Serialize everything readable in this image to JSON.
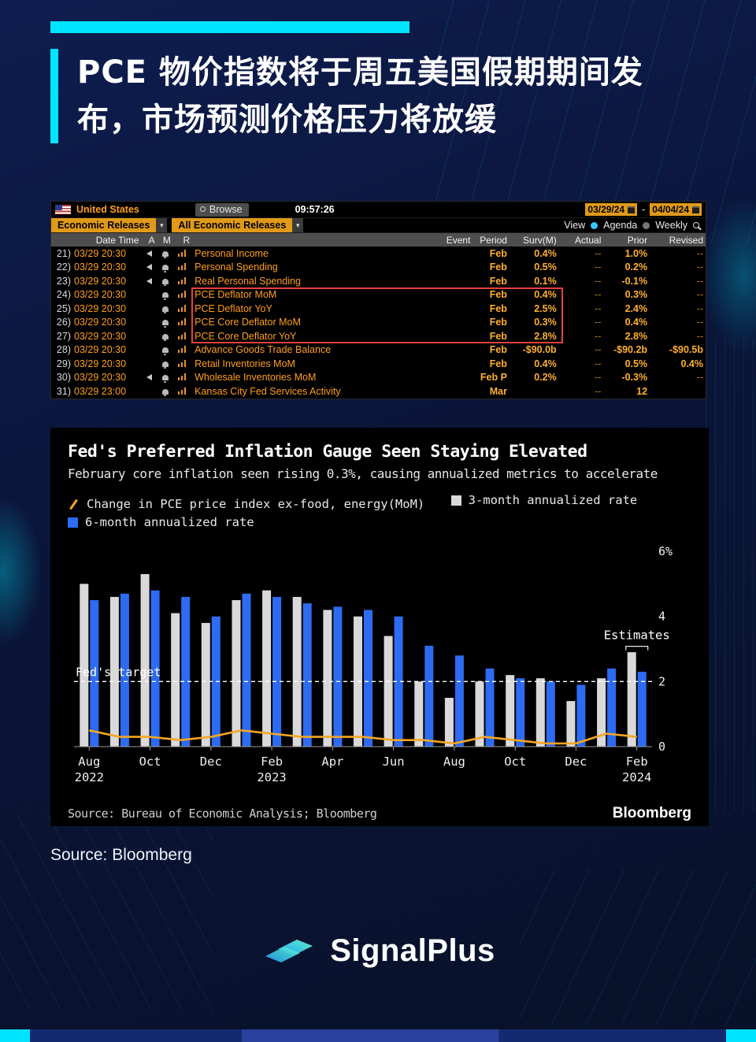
{
  "header": {
    "title_line1": "PCE 物价指数将于周五美国假期期间发",
    "title_line2": "布，市场预测价格压力将放缓"
  },
  "colors": {
    "accent_cyan": "#00e5ff",
    "terminal_amber": "#e09a17",
    "terminal_text_orange": "#ff9f1a",
    "highlight_red": "#e8413c",
    "bar_gray": "#d9d9d9",
    "bar_blue": "#2d6bf2",
    "line_orange": "#f5a623"
  },
  "terminal": {
    "country": "United States",
    "browse_label": "Browse",
    "time": "09:57:26",
    "date_from": "03/29/24",
    "date_separator": "-",
    "date_to": "04/04/24",
    "filter_primary": "Economic Releases",
    "filter_secondary": "All Economic Releases",
    "view_label": "View",
    "agenda_label": "Agenda",
    "weekly_label": "Weekly",
    "columns": [
      "Date Time",
      "A",
      "M",
      "R",
      "Event",
      "Period",
      "Surv(M)",
      "Actual",
      "Prior",
      "Revised"
    ],
    "rows": [
      {
        "num": "21)",
        "datetime": "03/29 20:30",
        "alert": true,
        "alarm": true,
        "chart": true,
        "event": "Personal Income",
        "period": "Feb",
        "surv": "0.4%",
        "actual": "--",
        "prior": "1.0%",
        "revised": "--",
        "highlight": false
      },
      {
        "num": "22)",
        "datetime": "03/29 20:30",
        "alert": true,
        "alarm": true,
        "chart": true,
        "event": "Personal Spending",
        "period": "Feb",
        "surv": "0.5%",
        "actual": "--",
        "prior": "0.2%",
        "revised": "--",
        "highlight": false
      },
      {
        "num": "23)",
        "datetime": "03/29 20:30",
        "alert": true,
        "alarm": true,
        "chart": true,
        "event": "Real Personal Spending",
        "period": "Feb",
        "surv": "0.1%",
        "actual": "--",
        "prior": "-0.1%",
        "revised": "--",
        "highlight": false
      },
      {
        "num": "24)",
        "datetime": "03/29 20:30",
        "alert": false,
        "alarm": true,
        "chart": true,
        "event": "PCE Deflator MoM",
        "period": "Feb",
        "surv": "0.4%",
        "actual": "--",
        "prior": "0.3%",
        "revised": "--",
        "highlight": true
      },
      {
        "num": "25)",
        "datetime": "03/29 20:30",
        "alert": false,
        "alarm": true,
        "chart": true,
        "event": "PCE Deflator YoY",
        "period": "Feb",
        "surv": "2.5%",
        "actual": "--",
        "prior": "2.4%",
        "revised": "--",
        "highlight": true
      },
      {
        "num": "26)",
        "datetime": "03/29 20:30",
        "alert": false,
        "alarm": true,
        "chart": true,
        "event": "PCE Core Deflator MoM",
        "period": "Feb",
        "surv": "0.3%",
        "actual": "--",
        "prior": "0.4%",
        "revised": "--",
        "highlight": true
      },
      {
        "num": "27)",
        "datetime": "03/29 20:30",
        "alert": false,
        "alarm": true,
        "chart": true,
        "event": "PCE Core Deflator YoY",
        "period": "Feb",
        "surv": "2.8%",
        "actual": "--",
        "prior": "2.8%",
        "revised": "--",
        "highlight": true
      },
      {
        "num": "28)",
        "datetime": "03/29 20:30",
        "alert": false,
        "alarm": true,
        "chart": true,
        "event": "Advance Goods Trade Balance",
        "period": "Feb",
        "surv": "-$90.0b",
        "actual": "--",
        "prior": "-$90.2b",
        "revised": "-$90.5b",
        "highlight": false
      },
      {
        "num": "29)",
        "datetime": "03/29 20:30",
        "alert": false,
        "alarm": true,
        "chart": true,
        "event": "Retail Inventories MoM",
        "period": "Feb",
        "surv": "0.4%",
        "actual": "--",
        "prior": "0.5%",
        "revised": "0.4%",
        "highlight": false
      },
      {
        "num": "30)",
        "datetime": "03/29 20:30",
        "alert": true,
        "alarm": true,
        "chart": true,
        "event": "Wholesale Inventories MoM",
        "period": "Feb P",
        "surv": "0.2%",
        "actual": "--",
        "prior": "-0.3%",
        "revised": "--",
        "highlight": false
      },
      {
        "num": "31)",
        "datetime": "03/29 23:00",
        "alert": false,
        "alarm": true,
        "chart": true,
        "event": "Kansas City Fed Services Activity",
        "period": "Mar",
        "surv": "",
        "actual": "--",
        "prior": "12",
        "revised": "",
        "highlight": false
      }
    ]
  },
  "chart_data": {
    "type": "bar",
    "title": "Fed's Preferred Inflation Gauge Seen Staying Elevated",
    "subtitle": "February core inflation seen rising 0.3%, causing annualized metrics to accelerate",
    "months": [
      "Aug 2022",
      "Sep 2022",
      "Oct 2022",
      "Nov 2022",
      "Dec 2022",
      "Jan 2023",
      "Feb 2023",
      "Mar 2023",
      "Apr 2023",
      "May 2023",
      "Jun 2023",
      "Jul 2023",
      "Aug 2023",
      "Sep 2023",
      "Oct 2023",
      "Nov 2023",
      "Dec 2023",
      "Jan 2024",
      "Feb 2024"
    ],
    "series": [
      {
        "name": "3-month annualized rate",
        "type": "bar",
        "color": "#d9d9d9",
        "values": [
          5.0,
          4.6,
          5.3,
          4.1,
          3.8,
          4.5,
          4.8,
          4.6,
          4.2,
          4.0,
          3.4,
          2.0,
          1.5,
          2.0,
          2.2,
          2.1,
          1.4,
          2.1,
          2.9
        ]
      },
      {
        "name": "6-month annualized rate",
        "type": "bar",
        "color": "#2d6bf2",
        "values": [
          4.5,
          4.7,
          4.8,
          4.6,
          4.0,
          4.7,
          4.6,
          4.4,
          4.3,
          4.2,
          4.0,
          3.1,
          2.8,
          2.4,
          2.1,
          2.0,
          1.9,
          2.4,
          2.3
        ]
      },
      {
        "name": "Change in PCE price index ex-food, energy(MoM)",
        "type": "line",
        "color": "#f5a623",
        "values": [
          0.5,
          0.3,
          0.3,
          0.2,
          0.3,
          0.5,
          0.4,
          0.3,
          0.3,
          0.3,
          0.2,
          0.2,
          0.1,
          0.3,
          0.2,
          0.1,
          0.1,
          0.4,
          0.3
        ]
      }
    ],
    "x_ticks": [
      {
        "index": 0,
        "month": "Aug",
        "year": "2022"
      },
      {
        "index": 2,
        "month": "Oct",
        "year": ""
      },
      {
        "index": 4,
        "month": "Dec",
        "year": ""
      },
      {
        "index": 6,
        "month": "Feb",
        "year": "2023"
      },
      {
        "index": 8,
        "month": "Apr",
        "year": ""
      },
      {
        "index": 10,
        "month": "Jun",
        "year": ""
      },
      {
        "index": 12,
        "month": "Aug",
        "year": ""
      },
      {
        "index": 14,
        "month": "Oct",
        "year": ""
      },
      {
        "index": 16,
        "month": "Dec",
        "year": ""
      },
      {
        "index": 18,
        "month": "Feb",
        "year": "2024"
      }
    ],
    "ylim": [
      0,
      6
    ],
    "yticks": [
      0,
      2,
      4,
      6
    ],
    "ytick_labels": [
      "0",
      "2",
      "4",
      "6%"
    ],
    "grid": false,
    "legend_position": "top",
    "fed_target": {
      "label": "Fed's target",
      "value": 2
    },
    "estimates_label": "Estimates",
    "source": "Source: Bureau of Economic Analysis; Bloomberg",
    "logo": "Bloomberg"
  },
  "footer": {
    "source": "Source: Bloomberg",
    "brand": "SignalPlus"
  }
}
